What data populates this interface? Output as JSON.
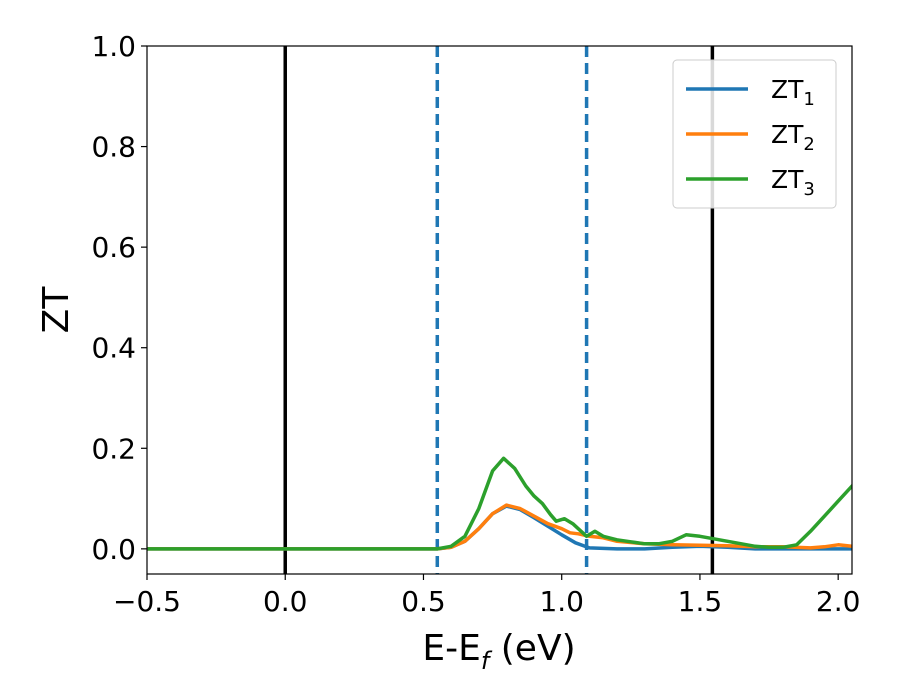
{
  "chart_data": {
    "type": "line",
    "xlabel": {
      "main": "E-E",
      "sub": "f",
      "tail": " (eV)"
    },
    "ylabel": "ZT",
    "xlim": [
      -0.5,
      2.05
    ],
    "ylim": [
      -0.05,
      1.0
    ],
    "xticks": [
      -0.5,
      0.0,
      0.5,
      1.0,
      1.5,
      2.0
    ],
    "xtick_labels": [
      "−0.5",
      "0.0",
      "0.5",
      "1.0",
      "1.5",
      "2.0"
    ],
    "yticks": [
      0.0,
      0.2,
      0.4,
      0.6,
      0.8,
      1.0
    ],
    "ytick_labels": [
      "0.0",
      "0.2",
      "0.4",
      "0.6",
      "0.8",
      "1.0"
    ],
    "grid": false,
    "legend_position": "top-right",
    "vlines": [
      {
        "x": 0.0,
        "style": "solid",
        "color": "#000000"
      },
      {
        "x": 1.545,
        "style": "solid",
        "color": "#000000"
      },
      {
        "x": 0.55,
        "style": "dashed",
        "color": "#1f77b4"
      },
      {
        "x": 1.09,
        "style": "dashed",
        "color": "#1f77b4"
      }
    ],
    "series": [
      {
        "name": "ZT",
        "sub": "1",
        "color": "#1f77b4",
        "points": [
          [
            -0.5,
            0
          ],
          [
            0.5,
            0
          ],
          [
            0.55,
            0
          ],
          [
            0.6,
            0.003
          ],
          [
            0.65,
            0.015
          ],
          [
            0.7,
            0.04
          ],
          [
            0.75,
            0.07
          ],
          [
            0.8,
            0.085
          ],
          [
            0.85,
            0.078
          ],
          [
            0.9,
            0.062
          ],
          [
            0.95,
            0.045
          ],
          [
            1.0,
            0.028
          ],
          [
            1.05,
            0.012
          ],
          [
            1.1,
            0.002
          ],
          [
            1.2,
            0.0
          ],
          [
            1.3,
            0.0
          ],
          [
            1.4,
            0.003
          ],
          [
            1.5,
            0.005
          ],
          [
            1.6,
            0.003
          ],
          [
            1.7,
            0.0
          ],
          [
            1.8,
            0.0
          ],
          [
            1.9,
            0.0
          ],
          [
            2.05,
            0.0
          ]
        ]
      },
      {
        "name": "ZT",
        "sub": "2",
        "color": "#ff7f0e",
        "points": [
          [
            -0.5,
            0
          ],
          [
            0.5,
            0
          ],
          [
            0.55,
            0
          ],
          [
            0.6,
            0.003
          ],
          [
            0.65,
            0.015
          ],
          [
            0.7,
            0.04
          ],
          [
            0.75,
            0.07
          ],
          [
            0.8,
            0.087
          ],
          [
            0.85,
            0.08
          ],
          [
            0.9,
            0.065
          ],
          [
            0.95,
            0.05
          ],
          [
            1.0,
            0.04
          ],
          [
            1.03,
            0.032
          ],
          [
            1.06,
            0.03
          ],
          [
            1.1,
            0.025
          ],
          [
            1.15,
            0.022
          ],
          [
            1.2,
            0.015
          ],
          [
            1.3,
            0.01
          ],
          [
            1.4,
            0.008
          ],
          [
            1.5,
            0.007
          ],
          [
            1.6,
            0.006
          ],
          [
            1.7,
            0.004
          ],
          [
            1.8,
            0.004
          ],
          [
            1.9,
            0.002
          ],
          [
            1.95,
            0.004
          ],
          [
            2.0,
            0.008
          ],
          [
            2.05,
            0.005
          ]
        ]
      },
      {
        "name": "ZT",
        "sub": "3",
        "color": "#2ca02c",
        "points": [
          [
            -0.5,
            0
          ],
          [
            0.5,
            0
          ],
          [
            0.55,
            0
          ],
          [
            0.6,
            0.005
          ],
          [
            0.65,
            0.025
          ],
          [
            0.7,
            0.08
          ],
          [
            0.75,
            0.155
          ],
          [
            0.79,
            0.18
          ],
          [
            0.83,
            0.16
          ],
          [
            0.87,
            0.125
          ],
          [
            0.9,
            0.105
          ],
          [
            0.93,
            0.09
          ],
          [
            0.96,
            0.068
          ],
          [
            0.98,
            0.055
          ],
          [
            1.01,
            0.06
          ],
          [
            1.04,
            0.05
          ],
          [
            1.07,
            0.035
          ],
          [
            1.09,
            0.025
          ],
          [
            1.12,
            0.035
          ],
          [
            1.15,
            0.025
          ],
          [
            1.2,
            0.018
          ],
          [
            1.25,
            0.014
          ],
          [
            1.3,
            0.01
          ],
          [
            1.35,
            0.01
          ],
          [
            1.4,
            0.015
          ],
          [
            1.45,
            0.028
          ],
          [
            1.5,
            0.025
          ],
          [
            1.55,
            0.02
          ],
          [
            1.6,
            0.015
          ],
          [
            1.65,
            0.01
          ],
          [
            1.7,
            0.005
          ],
          [
            1.75,
            0.003
          ],
          [
            1.8,
            0.003
          ],
          [
            1.85,
            0.008
          ],
          [
            1.9,
            0.035
          ],
          [
            1.95,
            0.065
          ],
          [
            2.0,
            0.095
          ],
          [
            2.05,
            0.125
          ]
        ]
      }
    ]
  }
}
